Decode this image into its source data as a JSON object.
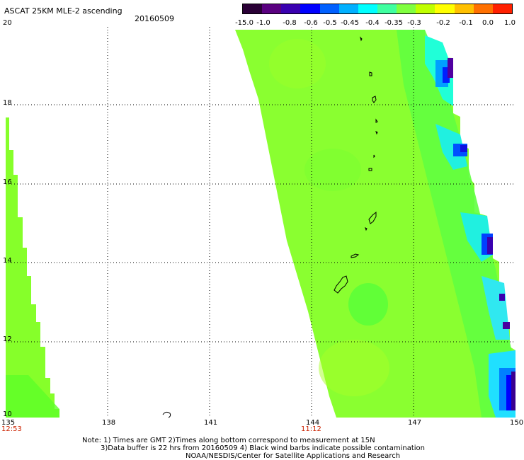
{
  "header": {
    "title": "ASCAT 25KM MLE-2 ascending",
    "date": "20160509"
  },
  "colorbar": {
    "labels": [
      "-15.0",
      "-1.0",
      "-0.8",
      "-0.6",
      "-0.5",
      "-0.45",
      "-0.4",
      "-0.35",
      "-0.3",
      "-0.2",
      "-0.1",
      "0.0",
      "1.0"
    ],
    "colors": [
      "#2a0036",
      "#5a0080",
      "#3a00b0",
      "#0000ff",
      "#0060ff",
      "#00b0ff",
      "#00ffff",
      "#40ffa0",
      "#80ff40",
      "#c0ff00",
      "#ffff00",
      "#ffc000",
      "#ff7000",
      "#ff2000"
    ]
  },
  "map": {
    "lon_ticks": [
      "135",
      "138",
      "141",
      "144",
      "147",
      "150"
    ],
    "lat_ticks": [
      "20",
      "18",
      "16",
      "14",
      "12",
      "10"
    ],
    "lon_range": [
      135,
      150
    ],
    "lat_range": [
      10,
      20
    ]
  },
  "times": {
    "left": "12:53",
    "center": "11:12"
  },
  "notes": {
    "line1": "Note: 1) Times are GMT 2)Times along bottom correspond to measurement at 15N",
    "line2": "3)Data buffer is 22 hrs from 20160509 4) Black wind barbs indicate possible contamination",
    "line3": "NOAA/NESDIS/Center for Satellite Applications and Research"
  }
}
